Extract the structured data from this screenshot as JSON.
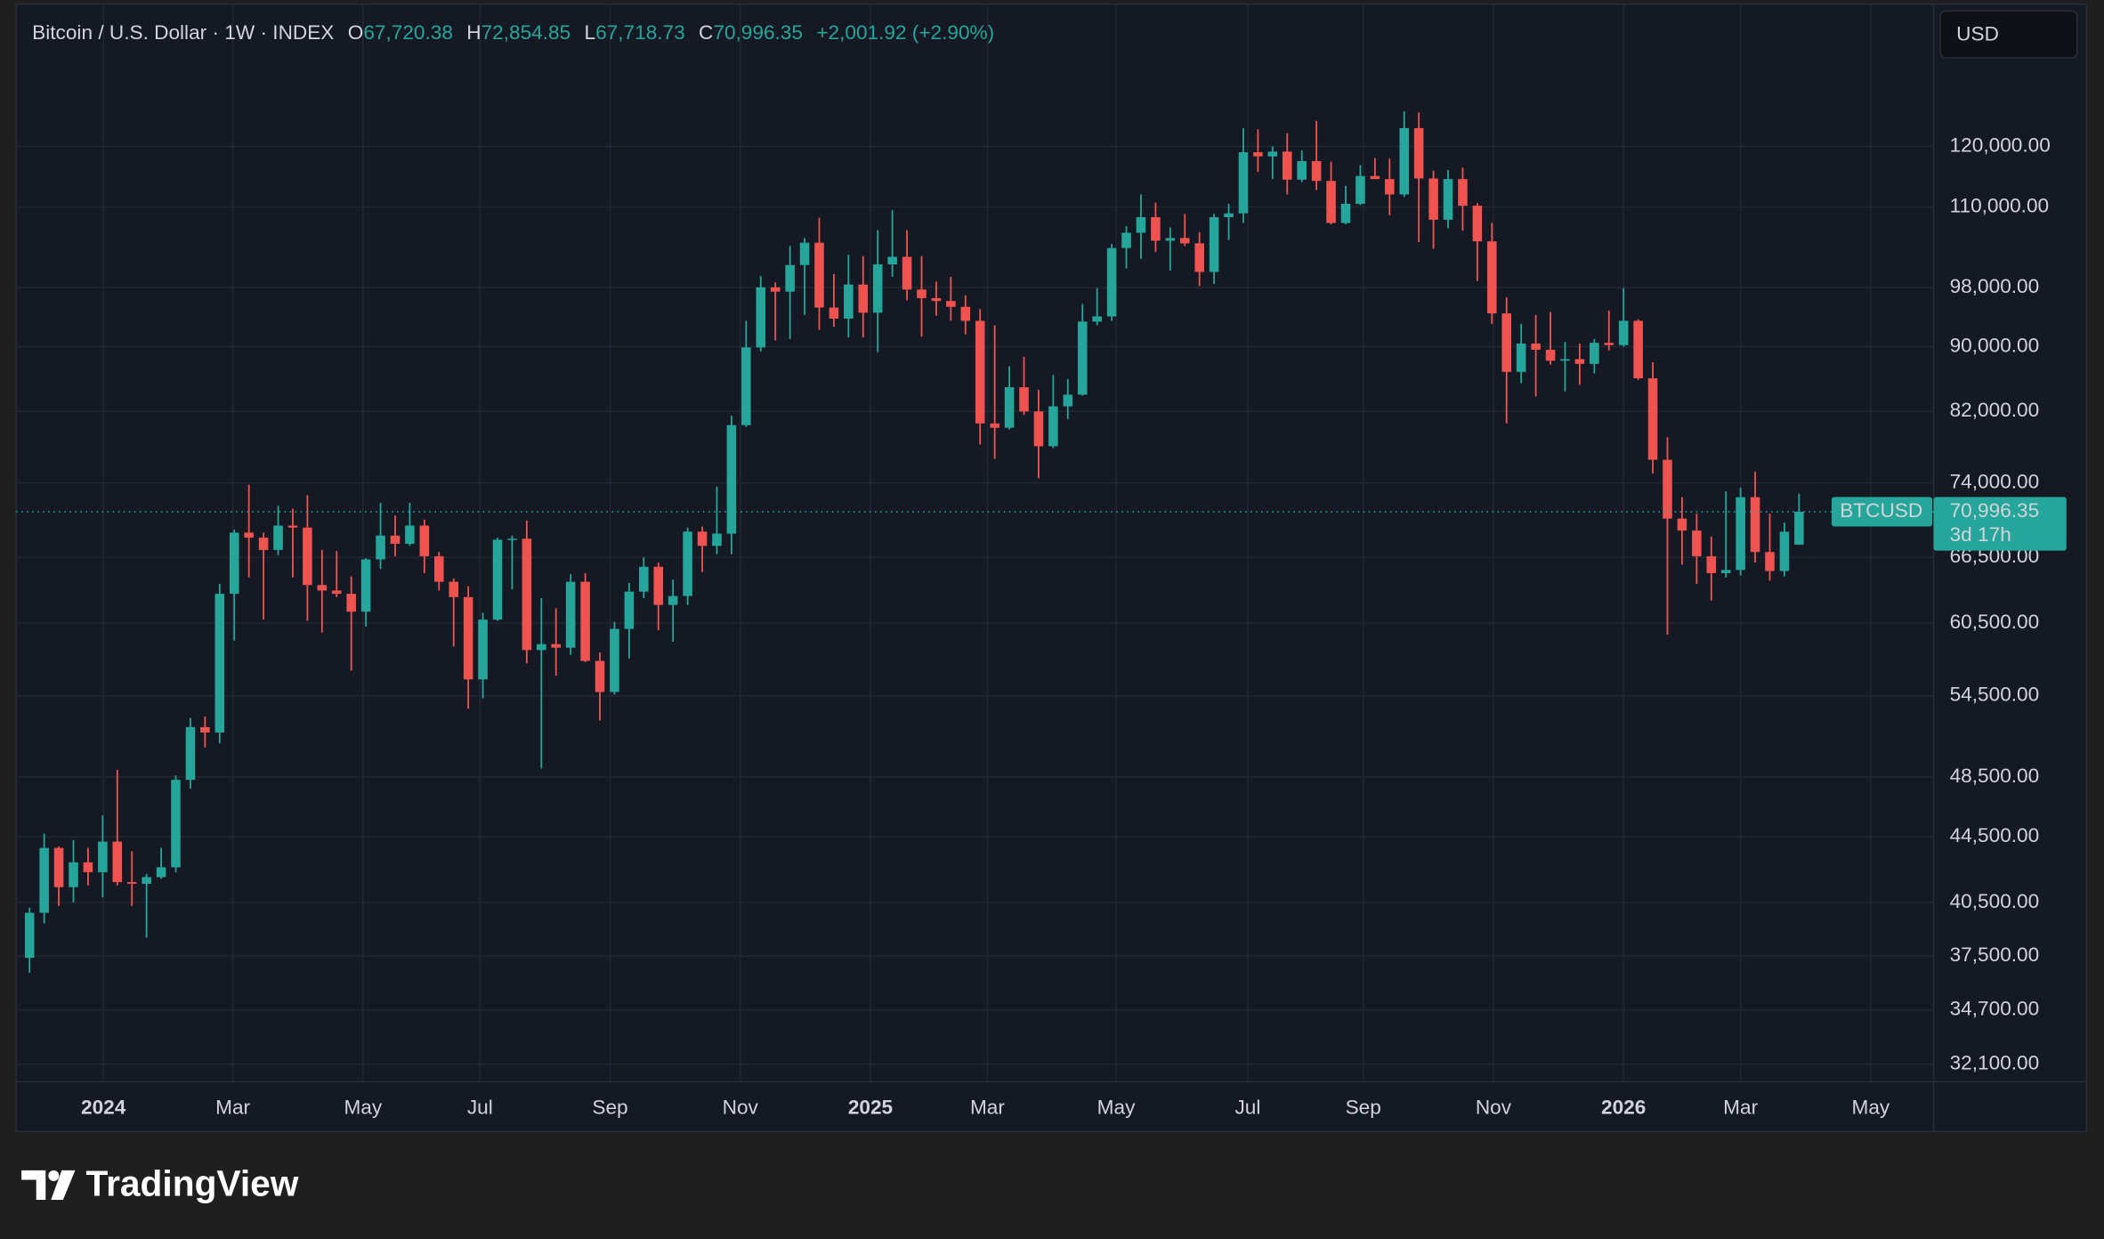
{
  "header": {
    "title": "Bitcoin / U.S. Dollar · 1W · INDEX",
    "ohlc": [
      {
        "key": "O",
        "value": "67,720.38"
      },
      {
        "key": "H",
        "value": "72,854.85"
      },
      {
        "key": "L",
        "value": "67,718.73"
      },
      {
        "key": "C",
        "value": "70,996.35"
      }
    ],
    "change": "+2,001.92 (+2.90%)"
  },
  "currency": "USD",
  "price_label": {
    "symbol": "BTCUSD",
    "price": "70,996.35",
    "countdown": "3d 17h"
  },
  "brand": "TradingView",
  "chart_data": {
    "type": "candlestick",
    "log_scale": true,
    "grid": true,
    "up_color": "#26a69a",
    "down_color": "#ef5350",
    "xlim": [
      -0.92,
      130.2
    ],
    "xticks": [
      {
        "value": 5.05,
        "label": "2024"
      },
      {
        "value": 13.9,
        "label": "Mar"
      },
      {
        "value": 22.8,
        "label": "May"
      },
      {
        "value": 30.8,
        "label": "Jul"
      },
      {
        "value": 39.7,
        "label": "Sep"
      },
      {
        "value": 48.6,
        "label": "Nov"
      },
      {
        "value": 57.5,
        "label": "2025"
      },
      {
        "value": 65.5,
        "label": "Mar"
      },
      {
        "value": 74.3,
        "label": "May"
      },
      {
        "value": 83.3,
        "label": "Jul"
      },
      {
        "value": 91.2,
        "label": "Sep"
      },
      {
        "value": 100.1,
        "label": "Nov"
      },
      {
        "value": 109.0,
        "label": "2026"
      },
      {
        "value": 117.0,
        "label": "Mar"
      },
      {
        "value": 125.9,
        "label": "May"
      }
    ],
    "ylim": [
      31300,
      147200
    ],
    "yticks": [
      {
        "value": 120000,
        "label": "120,000.00"
      },
      {
        "value": 110000,
        "label": "110,000.00"
      },
      {
        "value": 98000,
        "label": "98,000.00"
      },
      {
        "value": 90000,
        "label": "90,000.00"
      },
      {
        "value": 82000,
        "label": "82,000.00"
      },
      {
        "value": 74000,
        "label": "74,000.00"
      },
      {
        "value": 66500,
        "label": "66,500.00"
      },
      {
        "value": 60500,
        "label": "60,500.00"
      },
      {
        "value": 54500,
        "label": "54,500.00"
      },
      {
        "value": 48500,
        "label": "48,500.00"
      },
      {
        "value": 44500,
        "label": "44,500.00"
      },
      {
        "value": 40500,
        "label": "40,500.00"
      },
      {
        "value": 37500,
        "label": "37,500.00"
      },
      {
        "value": 34700,
        "label": "34,700.00"
      },
      {
        "value": 32100,
        "label": "32,100.00"
      }
    ],
    "open": [
      37400,
      39900,
      43800,
      41400,
      42900,
      42300,
      44200,
      41700,
      41600,
      42000,
      42600,
      48300,
      52100,
      51700,
      63100,
      68900,
      68400,
      67200,
      69600,
      69400,
      63900,
      63400,
      63100,
      61500,
      66300,
      68600,
      67800,
      69600,
      66600,
      64200,
      62800,
      55800,
      60800,
      68200,
      68300,
      58200,
      58700,
      58400,
      64200,
      57300,
      54800,
      60000,
      63300,
      65600,
      62100,
      62900,
      69000,
      67600,
      68800,
      80400,
      89900,
      98000,
      97400,
      101200,
      104500,
      95200,
      93700,
      98400,
      94500,
      101300,
      102400,
      97700,
      96500,
      96100,
      95300,
      93400,
      80600,
      80100,
      84900,
      82000,
      78000,
      82600,
      84000,
      93300,
      94000,
      103700,
      106000,
      108400,
      104800,
      105200,
      104400,
      100200,
      108400,
      109000,
      119000,
      118300,
      119100,
      114400,
      117500,
      114200,
      107500,
      110500,
      115000,
      114500,
      112000,
      123200,
      114600,
      108000,
      114500,
      110200,
      104700,
      94400,
      86800,
      90400,
      89600,
      88200,
      88400,
      87800,
      90500,
      90200,
      93400,
      86000,
      76500,
      70300,
      69100,
      66600,
      65000,
      65300,
      72500,
      67000,
      65200,
      67720.38
    ],
    "high": [
      40200,
      44700,
      43900,
      44300,
      43800,
      45900,
      49000,
      43600,
      42200,
      43800,
      48600,
      52800,
      52900,
      64000,
      69200,
      73800,
      68900,
      71600,
      71300,
      72700,
      67200,
      67100,
      64700,
      66400,
      71900,
      70600,
      71900,
      70200,
      67000,
      64500,
      63800,
      61400,
      68400,
      68600,
      70100,
      62700,
      61800,
      64900,
      65000,
      58000,
      60600,
      64100,
      66500,
      66000,
      64400,
      69400,
      69500,
      73600,
      81500,
      93400,
      99600,
      98700,
      104000,
      105200,
      108300,
      99900,
      102700,
      102500,
      106400,
      109500,
      106400,
      102500,
      98800,
      99500,
      96900,
      95000,
      92800,
      87500,
      88700,
      84600,
      86400,
      85900,
      95700,
      97900,
      104300,
      107000,
      112000,
      110700,
      106800,
      108900,
      106100,
      108900,
      110500,
      123200,
      123000,
      120000,
      122300,
      119300,
      124500,
      117400,
      113400,
      116800,
      118000,
      117900,
      126200,
      126000,
      115900,
      116000,
      116400,
      110600,
      107500,
      96600,
      93000,
      94200,
      94600,
      90600,
      90400,
      91000,
      94800,
      97900,
      93600,
      88000,
      79000,
      72500,
      70800,
      68500,
      73100,
      73500,
      75200,
      70800,
      69900,
      72854.85
    ],
    "low": [
      36600,
      39300,
      40300,
      40500,
      41500,
      40800,
      41500,
      40300,
      38500,
      41900,
      42300,
      47700,
      50600,
      50900,
      59000,
      64600,
      60800,
      66700,
      64600,
      60700,
      59700,
      62800,
      56500,
      60200,
      65400,
      66600,
      67600,
      65000,
      63400,
      58500,
      53500,
      54300,
      60700,
      63500,
      57100,
      49100,
      56100,
      57800,
      57200,
      52600,
      54600,
      57500,
      62700,
      59900,
      58900,
      62100,
      65100,
      66800,
      66800,
      80200,
      89400,
      90800,
      91000,
      94200,
      92200,
      92600,
      91200,
      91200,
      89300,
      99500,
      96200,
      91300,
      94100,
      93400,
      91600,
      78200,
      76600,
      79900,
      81600,
      74500,
      77800,
      81100,
      83900,
      92800,
      93400,
      100700,
      102100,
      103100,
      100400,
      104000,
      98200,
      98500,
      104900,
      107500,
      115700,
      114500,
      112000,
      114000,
      112700,
      107300,
      107300,
      110300,
      114700,
      108700,
      111600,
      104600,
      103600,
      106700,
      106300,
      98900,
      93000,
      80600,
      85400,
      83800,
      87700,
      84400,
      85200,
      86600,
      89500,
      90000,
      85800,
      75000,
      59500,
      65800,
      64000,
      62500,
      64600,
      64800,
      66000,
      64300,
      64700,
      67718.73
    ],
    "close": [
      39900,
      43800,
      41400,
      42900,
      42300,
      44200,
      41700,
      41600,
      42000,
      42600,
      48300,
      52100,
      51700,
      63100,
      68900,
      68400,
      67200,
      69600,
      69400,
      63900,
      63400,
      63100,
      61500,
      66300,
      68600,
      67800,
      69600,
      66600,
      64200,
      62800,
      55800,
      60800,
      68200,
      68300,
      58200,
      58700,
      58400,
      64200,
      57300,
      54800,
      60000,
      63300,
      65600,
      62100,
      62900,
      69000,
      67600,
      68800,
      80400,
      89900,
      98000,
      97400,
      101200,
      104500,
      95200,
      93700,
      98400,
      94500,
      101300,
      102400,
      97700,
      96500,
      96100,
      95300,
      93400,
      80600,
      80100,
      84900,
      82000,
      78000,
      82600,
      84000,
      93300,
      94000,
      103700,
      106000,
      108400,
      104800,
      105200,
      104400,
      100200,
      108400,
      109000,
      119000,
      118300,
      119100,
      114400,
      117500,
      114200,
      107500,
      110500,
      115000,
      114500,
      112000,
      123200,
      114600,
      108000,
      114500,
      110200,
      104700,
      94400,
      86800,
      90400,
      89600,
      88200,
      88400,
      87800,
      90500,
      90200,
      93400,
      86000,
      76500,
      70300,
      69100,
      66600,
      65000,
      65300,
      72500,
      67000,
      65200,
      68990,
      70996.35
    ]
  }
}
